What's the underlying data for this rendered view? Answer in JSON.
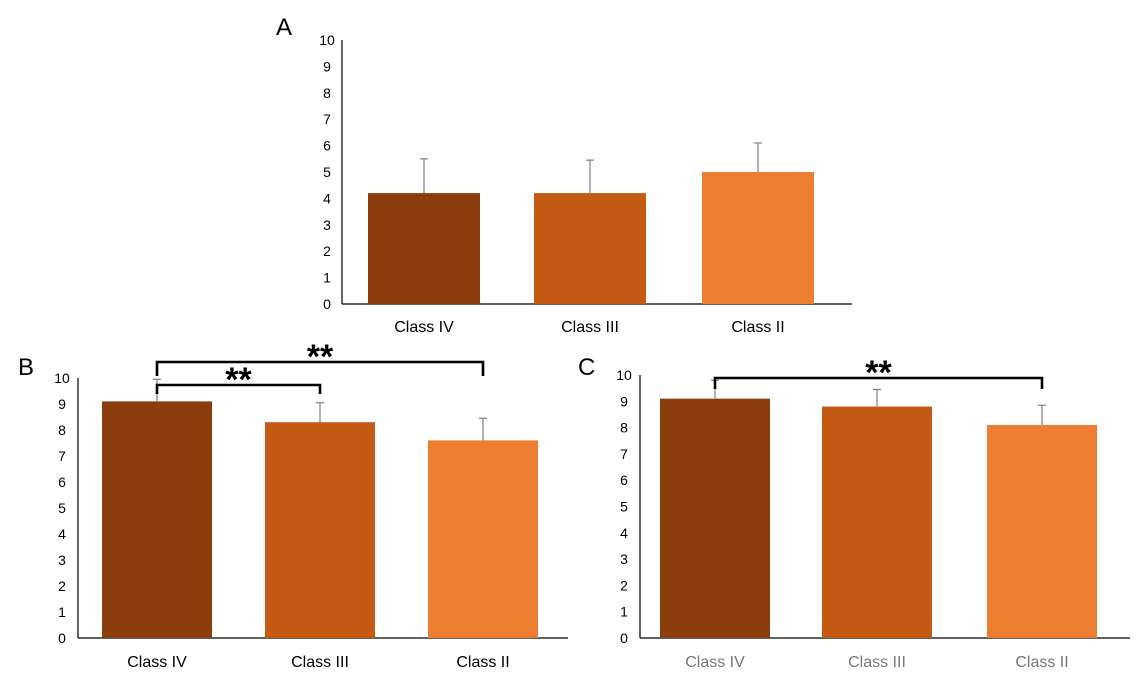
{
  "colors": {
    "axis": "#000000",
    "error_bar": "#7f7f7f",
    "bracket": "#000000",
    "category_text": [
      "#000000",
      "#000000",
      "#777777"
    ]
  },
  "chart_data": [
    {
      "type": "bar",
      "panel_label": "A",
      "categories": [
        "Class IV",
        "Class III",
        "Class II"
      ],
      "values": [
        4.2,
        4.2,
        5.0
      ],
      "errors": [
        1.3,
        1.25,
        1.1
      ],
      "bar_colors": [
        "#8b3d0d",
        "#c45a14",
        "#ed7d31"
      ],
      "ylim": [
        0,
        10
      ],
      "yticks": [
        "0",
        "1",
        "2",
        "3",
        "4",
        "5",
        "6",
        "7",
        "8",
        "9",
        "10"
      ],
      "xlabel": "",
      "ylabel": "",
      "significance": []
    },
    {
      "type": "bar",
      "panel_label": "B",
      "categories": [
        "Class IV",
        "Class III",
        "Class II"
      ],
      "values": [
        9.1,
        8.3,
        7.6
      ],
      "errors": [
        0.85,
        0.75,
        0.85
      ],
      "bar_colors": [
        "#8b3d0d",
        "#c45a14",
        "#ed7d31"
      ],
      "ylim": [
        0,
        10
      ],
      "yticks": [
        "0",
        "1",
        "2",
        "3",
        "4",
        "5",
        "6",
        "7",
        "8",
        "9",
        "10"
      ],
      "xlabel": "",
      "ylabel": "",
      "significance": [
        {
          "from": 0,
          "to": 1,
          "label": "**"
        },
        {
          "from": 0,
          "to": 2,
          "label": "**"
        }
      ]
    },
    {
      "type": "bar",
      "panel_label": "C",
      "categories": [
        "Class IV",
        "Class III",
        "Class II"
      ],
      "values": [
        9.1,
        8.8,
        8.1
      ],
      "errors": [
        0.7,
        0.65,
        0.75
      ],
      "bar_colors": [
        "#8b3d0d",
        "#c45a14",
        "#ed7d31"
      ],
      "ylim": [
        0,
        10
      ],
      "yticks": [
        "0",
        "1",
        "2",
        "3",
        "4",
        "5",
        "6",
        "7",
        "8",
        "9",
        "10"
      ],
      "xlabel": "",
      "ylabel": "",
      "significance": [
        {
          "from": 0,
          "to": 2,
          "label": "**"
        }
      ]
    }
  ]
}
